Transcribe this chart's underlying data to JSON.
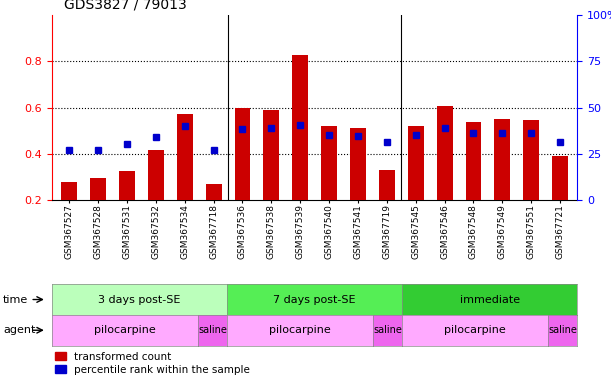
{
  "title": "GDS3827 / 79013",
  "samples": [
    "GSM367527",
    "GSM367528",
    "GSM367531",
    "GSM367532",
    "GSM367534",
    "GSM367718",
    "GSM367536",
    "GSM367538",
    "GSM367539",
    "GSM367540",
    "GSM367541",
    "GSM367719",
    "GSM367545",
    "GSM367546",
    "GSM367548",
    "GSM367549",
    "GSM367551",
    "GSM367721"
  ],
  "red_values": [
    0.275,
    0.295,
    0.325,
    0.415,
    0.57,
    0.27,
    0.6,
    0.59,
    0.83,
    0.52,
    0.51,
    0.33,
    0.52,
    0.605,
    0.535,
    0.55,
    0.545,
    0.39
  ],
  "blue_values": [
    0.415,
    0.415,
    0.44,
    0.47,
    0.52,
    0.415,
    0.505,
    0.51,
    0.525,
    0.48,
    0.475,
    0.45,
    0.48,
    0.51,
    0.49,
    0.49,
    0.49,
    0.45
  ],
  "time_groups": [
    {
      "label": "3 days post-SE",
      "start": 0,
      "end": 5,
      "color": "#bbffbb"
    },
    {
      "label": "7 days post-SE",
      "start": 6,
      "end": 11,
      "color": "#55ee55"
    },
    {
      "label": "immediate",
      "start": 12,
      "end": 17,
      "color": "#33cc33"
    }
  ],
  "agent_groups": [
    {
      "label": "pilocarpine",
      "start": 0,
      "end": 4,
      "color": "#ffaaff"
    },
    {
      "label": "saline",
      "start": 5,
      "end": 5,
      "color": "#ee66ee"
    },
    {
      "label": "pilocarpine",
      "start": 6,
      "end": 10,
      "color": "#ffaaff"
    },
    {
      "label": "saline",
      "start": 11,
      "end": 11,
      "color": "#ee66ee"
    },
    {
      "label": "pilocarpine",
      "start": 12,
      "end": 16,
      "color": "#ffaaff"
    },
    {
      "label": "saline",
      "start": 17,
      "end": 17,
      "color": "#ee66ee"
    }
  ],
  "ylim_left": [
    0.2,
    1.0
  ],
  "ylim_right": [
    0,
    100
  ],
  "yticks_left": [
    0.2,
    0.4,
    0.6,
    0.8
  ],
  "ytick_labels_left": [
    "0.2",
    "0.4",
    "0.6",
    "0.8"
  ],
  "yticks_right": [
    0,
    25,
    50,
    75,
    100
  ],
  "ytick_labels_right": [
    "0",
    "25",
    "50",
    "75",
    "100%"
  ],
  "bar_color": "#cc0000",
  "dot_color": "#0000cc",
  "bar_width": 0.55,
  "background_color": "#ffffff",
  "label_time": "time",
  "label_agent": "agent",
  "legend_red": "transformed count",
  "legend_blue": "percentile rank within the sample"
}
